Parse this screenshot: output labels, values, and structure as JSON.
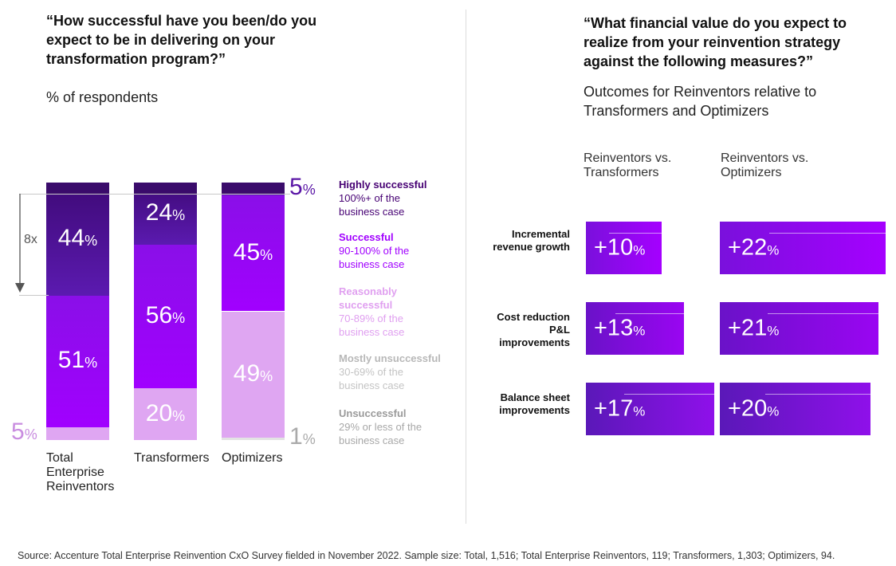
{
  "left": {
    "question": "“How successful have you been/do you expect to be in delivering on your transformation program?”",
    "subtitle": "% of respondents",
    "multiplier": "8x"
  },
  "right": {
    "question": "“What financial value do you expect to realize from your reinvention strategy against the following measures?”",
    "subtitle": "Outcomes for Reinventors relative to Transformers and Optimizers"
  },
  "legend": [
    {
      "title": "Highly successful",
      "desc": "100%+ of the business case",
      "color": "#460073"
    },
    {
      "title": "Successful",
      "desc": "90-100% of the business case",
      "color": "#a100ff"
    },
    {
      "title": "Reasonably successful",
      "desc": "70-89% of the business case",
      "color": "#e2a8f0"
    },
    {
      "title": "Mostly unsuccessful",
      "desc": "30-69% of the business case",
      "color": "#bdbdbd"
    },
    {
      "title": "Unsuccessful",
      "desc": "29% or less of the business case",
      "color": "#9a9a9a"
    }
  ],
  "chart_data": [
    {
      "type": "bar",
      "stacked": true,
      "categories": [
        "Total Enterprise Reinventors",
        "Transformers",
        "Optimizers"
      ],
      "series": [
        {
          "name": "Highly successful",
          "values": [
            44,
            24,
            5
          ]
        },
        {
          "name": "Successful",
          "values": [
            51,
            56,
            45
          ]
        },
        {
          "name": "Reasonably successful",
          "values": [
            5,
            20,
            49
          ]
        },
        {
          "name": "Mostly unsuccessful",
          "values": [
            0,
            0,
            1
          ]
        }
      ],
      "ylim": [
        0,
        100
      ],
      "unit": "%"
    },
    {
      "type": "table",
      "columns": [
        "Reinventors vs. Transformers",
        "Reinventors vs. Optimizers"
      ],
      "rows": [
        {
          "label": "Incremental revenue growth",
          "values": [
            10,
            22
          ]
        },
        {
          "label": "Cost reduction P&L improvements",
          "values": [
            13,
            21
          ]
        },
        {
          "label": "Balance sheet improvements",
          "values": [
            17,
            20
          ]
        }
      ],
      "prefix": "+",
      "unit": "%"
    }
  ],
  "source": "Source: Accenture Total Enterprise Reinvention CxO Survey fielded in November 2022. Sample size: Total, 1,516; Total Enterprise Reinventors, 119; Transformers, 1,303; Optimizers, 94."
}
